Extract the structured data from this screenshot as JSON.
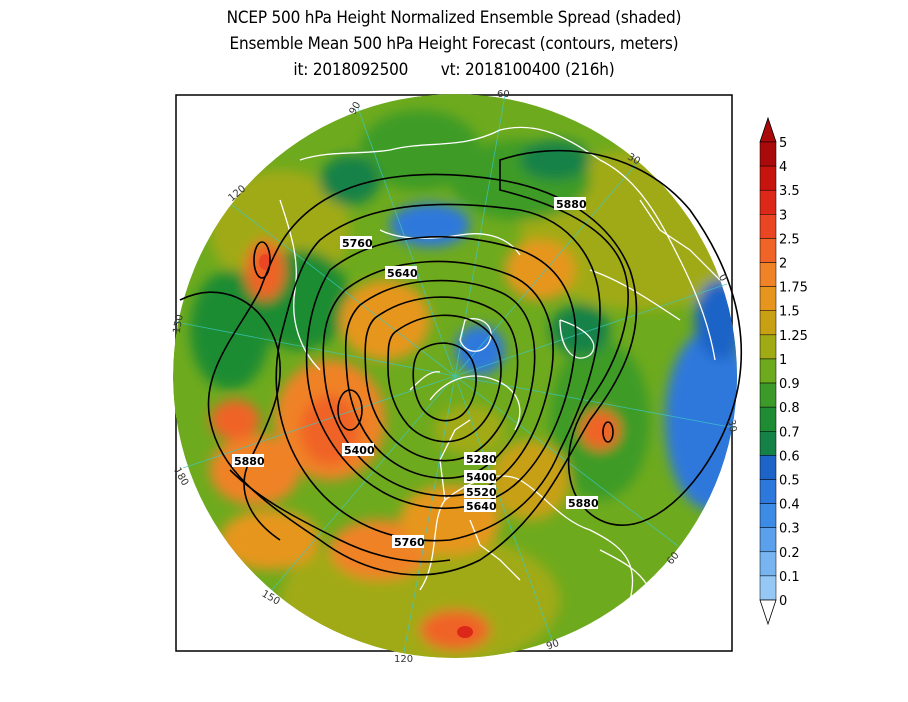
{
  "title": {
    "line1": "NCEP 500 hPa Height Normalized Ensemble Spread (shaded)",
    "line2": "Ensemble Mean 500 hPa Height Forecast (contours, meters)",
    "line3": "it: 2018092500       vt: 2018100400 (216h)"
  },
  "colorbar": {
    "labels": [
      "0",
      "0.1",
      "0.2",
      "0.3",
      "0.4",
      "0.5",
      "0.6",
      "0.7",
      "0.8",
      "0.9",
      "1",
      "1.25",
      "1.5",
      "1.75",
      "2",
      "2.5",
      "3",
      "3.5",
      "4",
      "5"
    ],
    "colors": [
      "#b4dcfa",
      "#96c8f5",
      "#78b4f0",
      "#5aa0eb",
      "#3c8ce6",
      "#2d78dc",
      "#1e64c8",
      "#148246",
      "#1e8c32",
      "#3c9b28",
      "#6eaa1e",
      "#a0aa14",
      "#c8a014",
      "#e6961e",
      "#f08228",
      "#f06428",
      "#eb4623",
      "#dc2819",
      "#c8140f",
      "#aa0a0a"
    ],
    "low_cap_color": "#ffffff",
    "high_cap_color": "#aa0a0a"
  },
  "contour_labels": [
    "5760",
    "5640",
    "5880",
    "5400",
    "5880",
    "5280",
    "5400",
    "5520",
    "5640",
    "5880",
    "5760"
  ],
  "longitude_labels": [
    "60",
    "90",
    "120",
    "150",
    "180",
    "150",
    "120",
    "90",
    "60",
    "30",
    "0",
    "30"
  ],
  "map_data": {
    "projection": "north polar stereographic",
    "field_shaded": "normalized ensemble spread of 500 hPa height",
    "field_contours": "ensemble mean 500 hPa height (m)"
  }
}
